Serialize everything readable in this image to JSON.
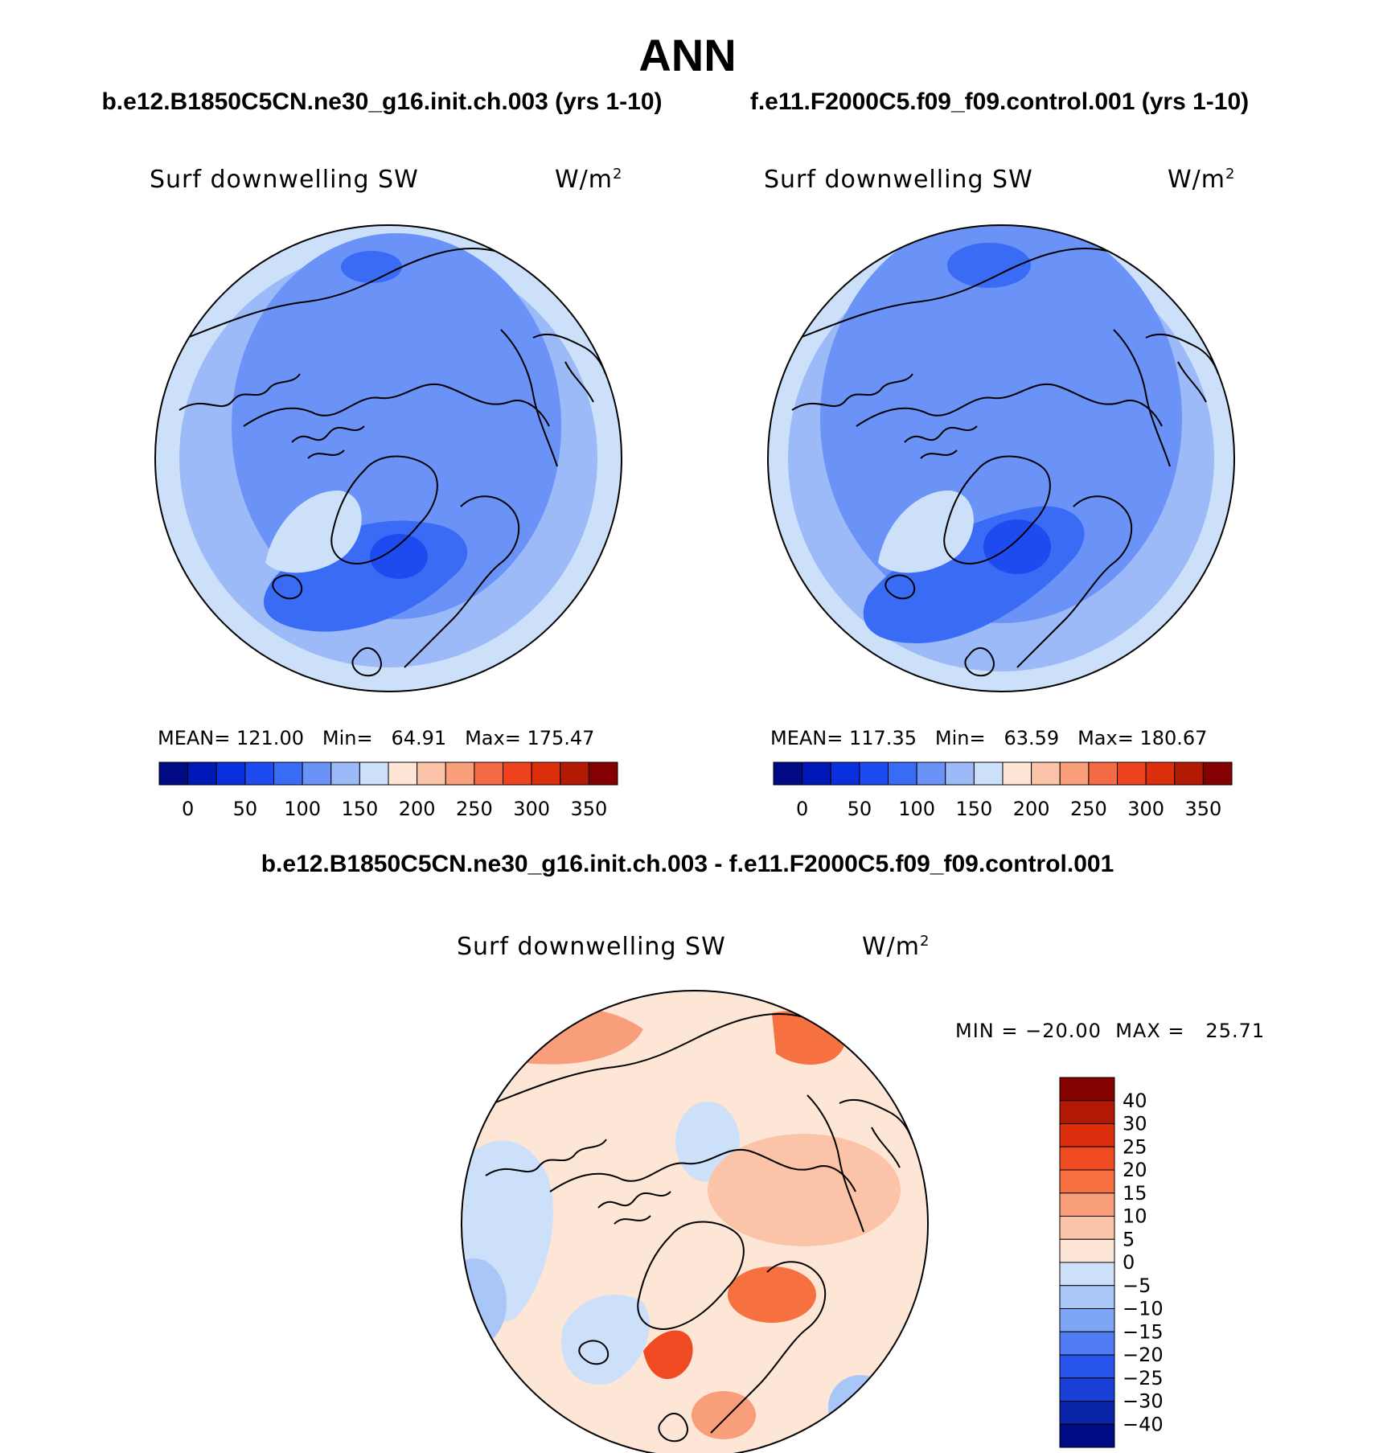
{
  "title": "ANN",
  "colors": {
    "coastline": "#000000",
    "map_border": "#000000"
  },
  "chart_data": [
    {
      "type": "heatmap",
      "case_title": "b.e12.B1850C5CN.ne30_g16.init.ch.003 (yrs 1-10)",
      "variable": "Surf downwelling SW",
      "units_base": "W/m",
      "units_exp": "2",
      "projection": "north-polar-stereographic",
      "stats": {
        "mean_label": "MEAN=",
        "mean": "121.00",
        "min_label": "Min=",
        "min": "64.91",
        "max_label": "Max=",
        "max": "175.47"
      },
      "colorbar": {
        "orientation": "horizontal",
        "levels": [
          0,
          25,
          50,
          75,
          100,
          125,
          150,
          175,
          200,
          225,
          250,
          275,
          300,
          325,
          350
        ],
        "tick_labels": [
          "0",
          "50",
          "100",
          "150",
          "200",
          "250",
          "300",
          "350"
        ],
        "colors": [
          "#000a85",
          "#0018b5",
          "#0930dc",
          "#1e4bf0",
          "#3a6bf5",
          "#6b93f7",
          "#9cb9f8",
          "#cce0fa",
          "#fde6d6",
          "#fbc3a7",
          "#f99e7a",
          "#f46a44",
          "#ef4320",
          "#db2e0c",
          "#b21a06",
          "#850000"
        ]
      }
    },
    {
      "type": "heatmap",
      "case_title": "f.e11.F2000C5.f09_f09.control.001 (yrs 1-10)",
      "variable": "Surf downwelling SW",
      "units_base": "W/m",
      "units_exp": "2",
      "projection": "north-polar-stereographic",
      "stats": {
        "mean_label": "MEAN=",
        "mean": "117.35",
        "min_label": "Min=",
        "min": "63.59",
        "max_label": "Max=",
        "max": "180.67"
      },
      "colorbar": {
        "orientation": "horizontal",
        "levels": [
          0,
          25,
          50,
          75,
          100,
          125,
          150,
          175,
          200,
          225,
          250,
          275,
          300,
          325,
          350
        ],
        "tick_labels": [
          "0",
          "50",
          "100",
          "150",
          "200",
          "250",
          "300",
          "350"
        ],
        "colors": [
          "#000a85",
          "#0018b5",
          "#0930dc",
          "#1e4bf0",
          "#3a6bf5",
          "#6b93f7",
          "#9cb9f8",
          "#cce0fa",
          "#fde6d6",
          "#fbc3a7",
          "#f99e7a",
          "#f46a44",
          "#ef4320",
          "#db2e0c",
          "#b21a06",
          "#850000"
        ]
      }
    },
    {
      "type": "heatmap",
      "case_title": "b.e12.B1850C5CN.ne30_g16.init.ch.003 - f.e11.F2000C5.f09_f09.control.001",
      "variable": "Surf downwelling SW",
      "units_base": "W/m",
      "units_exp": "2",
      "projection": "north-polar-stereographic",
      "stats": {
        "min_label": "MIN =",
        "min": "−20.00",
        "max_label": "MAX =",
        "max": "25.71"
      },
      "colorbar": {
        "orientation": "vertical",
        "tick_labels": [
          "40",
          "30",
          "25",
          "20",
          "15",
          "10",
          "5",
          "0",
          "−5",
          "−10",
          "−15",
          "−20",
          "−25",
          "−30",
          "−40"
        ],
        "colors": [
          "#850000",
          "#b21a06",
          "#db2e0c",
          "#f04a22",
          "#f77040",
          "#f99e7a",
          "#fbc3a7",
          "#fde6d6",
          "#cce0fa",
          "#a8c7f8",
          "#7fa6f6",
          "#4f7cf2",
          "#2553ec",
          "#1a3fd6",
          "#0a24a8",
          "#000a85"
        ]
      }
    }
  ]
}
